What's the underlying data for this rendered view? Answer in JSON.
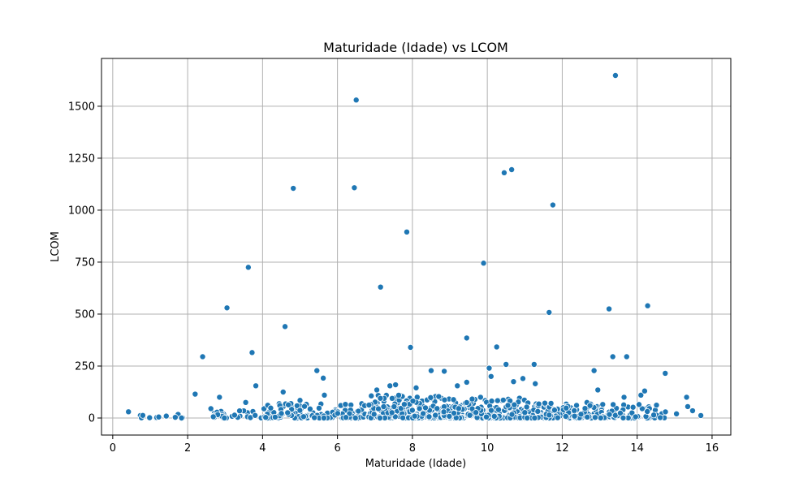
{
  "chart_data": {
    "type": "scatter",
    "title": "Maturidade (Idade) vs LCOM",
    "xlabel": "Maturidade (Idade)",
    "ylabel": "LCOM",
    "xlim": [
      -0.3,
      16.5
    ],
    "ylim": [
      -82,
      1730
    ],
    "xticks": [
      0,
      2,
      4,
      6,
      8,
      10,
      12,
      14,
      16
    ],
    "yticks": [
      0,
      250,
      500,
      750,
      1000,
      1250,
      1500
    ],
    "grid": true,
    "marker_color": "#1f77b4",
    "outliers": [
      [
        0.42,
        30
      ],
      [
        2.2,
        115
      ],
      [
        2.4,
        295
      ],
      [
        2.62,
        45
      ],
      [
        2.85,
        100
      ],
      [
        3.05,
        530
      ],
      [
        3.55,
        75
      ],
      [
        3.62,
        725
      ],
      [
        3.72,
        315
      ],
      [
        3.82,
        155
      ],
      [
        4.55,
        125
      ],
      [
        4.6,
        440
      ],
      [
        4.82,
        1105
      ],
      [
        5.0,
        85
      ],
      [
        5.45,
        228
      ],
      [
        5.62,
        192
      ],
      [
        5.65,
        110
      ],
      [
        6.45,
        1108
      ],
      [
        6.5,
        1530
      ],
      [
        7.05,
        135
      ],
      [
        7.15,
        630
      ],
      [
        7.4,
        155
      ],
      [
        7.55,
        160
      ],
      [
        7.85,
        895
      ],
      [
        7.95,
        340
      ],
      [
        8.1,
        145
      ],
      [
        8.5,
        228
      ],
      [
        8.85,
        225
      ],
      [
        9.2,
        155
      ],
      [
        9.45,
        385
      ],
      [
        9.45,
        172
      ],
      [
        9.9,
        745
      ],
      [
        10.05,
        240
      ],
      [
        10.1,
        200
      ],
      [
        10.25,
        342
      ],
      [
        10.45,
        1180
      ],
      [
        10.5,
        258
      ],
      [
        10.65,
        1195
      ],
      [
        10.7,
        175
      ],
      [
        10.95,
        190
      ],
      [
        11.25,
        258
      ],
      [
        11.28,
        165
      ],
      [
        11.65,
        508
      ],
      [
        11.75,
        1025
      ],
      [
        12.85,
        228
      ],
      [
        12.95,
        135
      ],
      [
        13.25,
        525
      ],
      [
        13.35,
        295
      ],
      [
        13.42,
        1648
      ],
      [
        13.65,
        100
      ],
      [
        13.72,
        295
      ],
      [
        14.05,
        65
      ],
      [
        14.1,
        110
      ],
      [
        14.2,
        130
      ],
      [
        14.28,
        540
      ],
      [
        14.75,
        215
      ],
      [
        15.05,
        20
      ],
      [
        15.32,
        100
      ],
      [
        15.35,
        55
      ],
      [
        15.48,
        35
      ],
      [
        15.7,
        12
      ]
    ],
    "clusters": [
      {
        "x_range": [
          0.6,
          2.2
        ],
        "count": 12,
        "y_max": 25,
        "seed": 11
      },
      {
        "x_range": [
          2.6,
          4.0
        ],
        "count": 28,
        "y_max": 40,
        "seed": 23
      },
      {
        "x_range": [
          4.0,
          6.8
        ],
        "count": 130,
        "y_max": 70,
        "seed": 37
      },
      {
        "x_range": [
          6.8,
          8.8
        ],
        "count": 170,
        "y_max": 110,
        "seed": 41
      },
      {
        "x_range": [
          8.8,
          11.0
        ],
        "count": 190,
        "y_max": 100,
        "seed": 53
      },
      {
        "x_range": [
          11.0,
          13.2
        ],
        "count": 150,
        "y_max": 75,
        "seed": 67
      },
      {
        "x_range": [
          13.2,
          14.8
        ],
        "count": 55,
        "y_max": 65,
        "seed": 79
      }
    ]
  }
}
